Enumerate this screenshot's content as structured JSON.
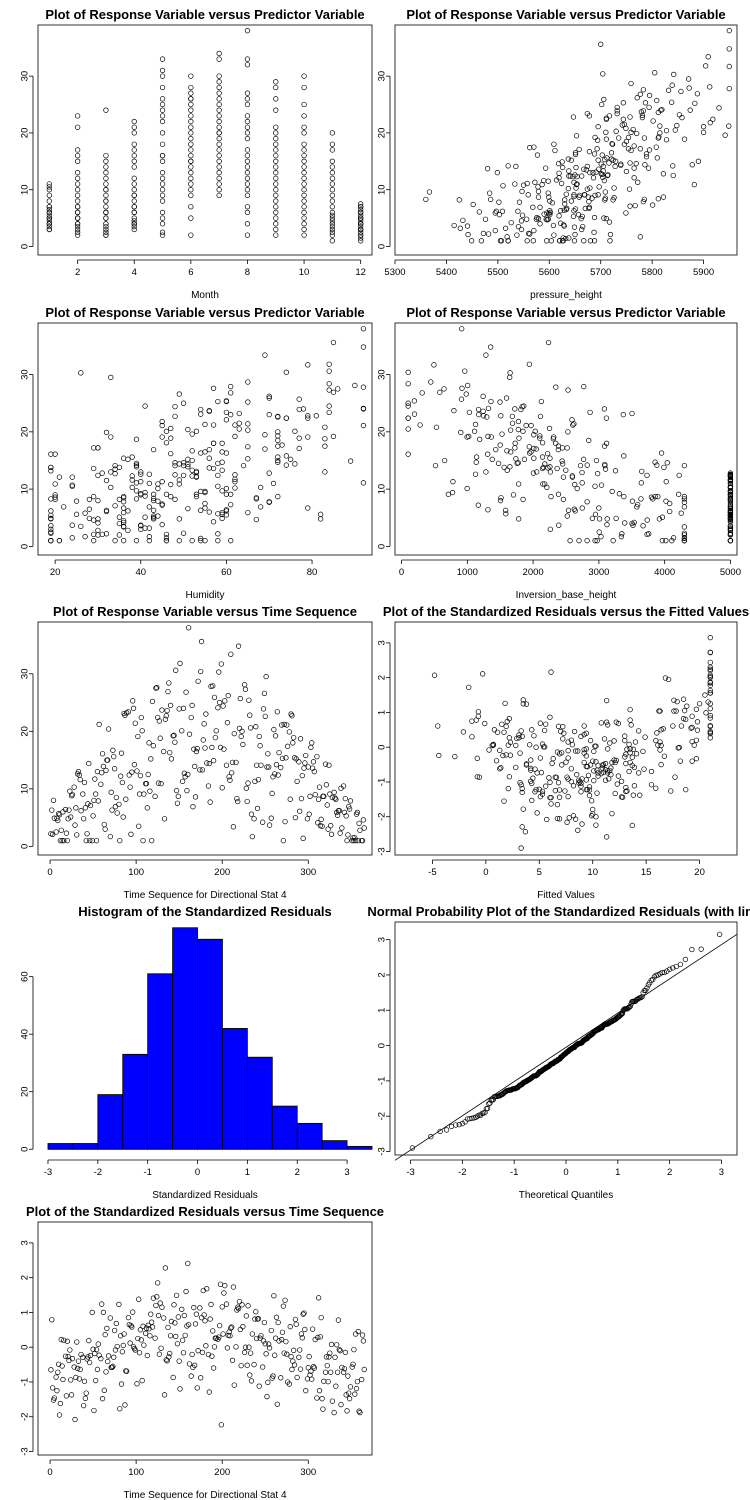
{
  "figure": {
    "background": "#ffffff",
    "point_color": "#000000",
    "hist_fill": "#0000ff"
  },
  "chart_data": [
    {
      "id": "month",
      "type": "scatter",
      "title": "Plot of Response Variable versus Predictor Variable",
      "xlabel": "Month",
      "ylabel": "",
      "xlim": [
        0.6,
        12.4
      ],
      "ylim": [
        -1.5,
        39
      ],
      "xticks": [
        2,
        4,
        6,
        8,
        10,
        12
      ],
      "yticks": [
        0,
        10,
        20,
        30
      ],
      "x": [
        1,
        1,
        1,
        1,
        1,
        1,
        1,
        1,
        1,
        1,
        1,
        1,
        1,
        1,
        1,
        1,
        1,
        1,
        1,
        1,
        2,
        2,
        2,
        2,
        2,
        2,
        2,
        2,
        2,
        2,
        2,
        2,
        2,
        2,
        2,
        2,
        2,
        2,
        2,
        2,
        2,
        2,
        2,
        2,
        3,
        3,
        3,
        3,
        3,
        3,
        3,
        3,
        3,
        3,
        3,
        3,
        3,
        3,
        3,
        3,
        3,
        3,
        3,
        3,
        3,
        3,
        3,
        3,
        4,
        4,
        4,
        4,
        4,
        4,
        4,
        4,
        4,
        4,
        4,
        4,
        4,
        4,
        4,
        4,
        4,
        4,
        4,
        4,
        4,
        4,
        4,
        4,
        5,
        5,
        5,
        5,
        5,
        5,
        5,
        5,
        5,
        5,
        5,
        5,
        5,
        5,
        5,
        5,
        5,
        5,
        5,
        5,
        5,
        5,
        5,
        5,
        5,
        6,
        6,
        6,
        6,
        6,
        6,
        6,
        6,
        6,
        6,
        6,
        6,
        6,
        6,
        6,
        6,
        6,
        6,
        6,
        6,
        6,
        6,
        6,
        6,
        6,
        6,
        7,
        7,
        7,
        7,
        7,
        7,
        7,
        7,
        7,
        7,
        7,
        7,
        7,
        7,
        7,
        7,
        7,
        7,
        7,
        7,
        7,
        7,
        7,
        7,
        7,
        8,
        8,
        8,
        8,
        8,
        8,
        8,
        8,
        8,
        8,
        8,
        8,
        8,
        8,
        8,
        8,
        8,
        8,
        8,
        8,
        8,
        8,
        8,
        8,
        9,
        9,
        9,
        9,
        9,
        9,
        9,
        9,
        9,
        9,
        9,
        9,
        9,
        9,
        9,
        9,
        9,
        9,
        9,
        9,
        9,
        9,
        9,
        9,
        10,
        10,
        10,
        10,
        10,
        10,
        10,
        10,
        10,
        10,
        10,
        10,
        10,
        10,
        10,
        10,
        10,
        10,
        10,
        10,
        10,
        10,
        10,
        11,
        11,
        11,
        11,
        11,
        11,
        11,
        11,
        11,
        11,
        11,
        11,
        11,
        11,
        11,
        11,
        11,
        11,
        11,
        11,
        11,
        11,
        12,
        12,
        12,
        12,
        12,
        12,
        12,
        12,
        12,
        12,
        12,
        12,
        12,
        12,
        12,
        12,
        12,
        12,
        12,
        12,
        12,
        12,
        12
      ],
      "y": [
        3,
        3.5,
        4,
        4,
        4.5,
        5,
        5,
        5,
        5.5,
        6,
        6,
        6.5,
        7,
        7,
        8,
        9,
        10,
        10.5,
        11,
        3,
        2,
        2.5,
        3,
        3.5,
        4,
        5,
        5,
        6,
        6,
        7,
        7,
        8,
        9,
        10,
        11,
        12,
        13,
        15,
        16,
        17,
        21,
        23,
        4,
        5,
        2,
        2.5,
        3,
        3.5,
        4,
        5,
        5,
        6,
        6,
        7,
        8,
        8,
        9,
        10,
        10,
        11,
        12,
        13,
        14,
        15,
        16,
        24,
        2,
        6,
        3,
        3.5,
        4,
        4.5,
        5,
        6,
        6,
        7,
        7,
        8,
        9,
        10,
        11,
        12,
        14,
        15,
        16,
        17,
        18,
        20,
        21,
        22,
        4,
        9,
        2,
        2.5,
        4,
        5,
        6,
        8,
        9,
        10,
        11,
        12,
        13,
        15,
        16,
        18,
        20,
        22,
        23,
        24,
        25,
        26,
        28,
        30,
        31,
        33,
        16,
        2,
        5,
        7,
        9,
        10,
        11,
        12,
        13,
        14,
        15,
        16,
        17,
        18,
        19,
        20,
        21,
        22,
        23,
        24,
        25,
        26,
        26,
        27,
        28,
        30,
        15,
        9,
        10,
        11,
        12,
        13,
        14,
        15,
        16,
        17,
        18,
        19,
        20,
        21,
        22,
        23,
        24,
        25,
        26,
        27,
        28,
        29,
        30,
        33,
        34,
        20,
        2,
        4,
        6,
        7,
        9,
        10,
        11,
        12,
        13,
        14,
        15,
        16,
        17,
        19,
        20,
        21,
        22,
        23,
        25,
        26,
        27,
        32,
        33,
        38,
        2,
        3,
        4,
        5,
        6,
        7,
        8,
        9,
        10,
        11,
        12,
        13,
        14,
        15,
        16,
        17,
        18,
        19,
        20,
        21,
        24,
        26,
        28,
        29,
        2,
        3,
        4,
        5,
        6,
        7,
        8,
        9,
        10,
        11,
        12,
        13,
        14,
        15,
        16,
        17,
        18,
        20,
        21,
        23,
        25,
        28,
        30,
        1,
        2,
        3,
        3.5,
        4,
        4.5,
        5,
        5.5,
        6,
        7,
        8,
        9,
        10,
        11,
        12,
        13,
        14,
        15,
        17,
        18,
        20,
        2.5,
        1,
        1.5,
        2,
        2.5,
        3,
        3,
        3.5,
        4,
        4,
        4.5,
        5,
        5,
        5.5,
        6,
        6,
        6.5,
        7,
        7,
        7.5,
        2,
        3,
        4,
        5
      ]
    },
    {
      "id": "pressure",
      "type": "scatter",
      "title": "Plot of Response Variable versus Predictor Variable",
      "xlabel": "pressure_height",
      "ylabel": "",
      "xlim": [
        5300,
        5965
      ],
      "ylim": [
        -1.5,
        39
      ],
      "xticks": [
        5300,
        5400,
        5500,
        5600,
        5700,
        5800,
        5900
      ],
      "yticks": [
        0,
        10,
        20,
        30
      ]
    },
    {
      "id": "humidity",
      "type": "scatter",
      "title": "Plot of Response Variable versus Predictor Variable",
      "xlabel": "Humidity",
      "ylabel": "",
      "xlim": [
        16,
        94
      ],
      "ylim": [
        -1.5,
        39
      ],
      "xticks": [
        20,
        40,
        60,
        80
      ],
      "yticks": [
        0,
        10,
        20,
        30
      ]
    },
    {
      "id": "inversion",
      "type": "scatter",
      "title": "Plot of Response Variable versus Predictor Variable",
      "xlabel": "Inversion_base_height",
      "ylabel": "",
      "xlim": [
        -100,
        5100
      ],
      "ylim": [
        -1.5,
        39
      ],
      "xticks": [
        0,
        1000,
        2000,
        3000,
        4000,
        5000
      ],
      "yticks": [
        0,
        10,
        20,
        30
      ]
    },
    {
      "id": "time-response",
      "type": "scatter",
      "title": "Plot of Response Variable versus Time Sequence",
      "xlabel": "Time Sequence for Directional Stat 4",
      "ylabel": "",
      "xlim": [
        -14,
        374
      ],
      "ylim": [
        -1.5,
        39
      ],
      "xticks": [
        0,
        100,
        200,
        300
      ],
      "yticks": [
        0,
        10,
        20,
        30
      ]
    },
    {
      "id": "resid-fitted",
      "type": "scatter",
      "title": "Plot of the Standardized Residuals versus the Fitted Values",
      "xlabel": "Fitted Values",
      "ylabel": "",
      "xlim": [
        -8.5,
        23.5
      ],
      "ylim": [
        -3.1,
        3.6
      ],
      "xticks": [
        -5,
        0,
        5,
        10,
        15,
        20
      ],
      "yticks": [
        -3,
        -2,
        -1,
        0,
        1,
        2,
        3
      ]
    },
    {
      "id": "histogram",
      "type": "bar",
      "title": "Histogram of the Standardized Residuals",
      "xlabel": "Standardized Residuals",
      "ylabel": "",
      "bin_edges": [
        -3,
        -2.5,
        -2,
        -1.5,
        -1,
        -0.5,
        0,
        0.5,
        1,
        1.5,
        2,
        2.5,
        3,
        3.5
      ],
      "values": [
        2,
        2,
        19,
        33,
        61,
        77,
        73,
        42,
        32,
        15,
        9,
        3,
        1
      ],
      "xlim": [
        -3.2,
        3.5
      ],
      "ylim": [
        -2,
        79
      ],
      "xticks": [
        -3,
        -2,
        -1,
        0,
        1,
        2,
        3
      ],
      "yticks": [
        0,
        20,
        40,
        60
      ],
      "color": "#0000ff"
    },
    {
      "id": "qq",
      "type": "scatter",
      "title": "Normal Probability Plot of the Standardized Residuals (with line)",
      "xlabel": "Theoretical Quantiles",
      "ylabel": "",
      "xlim": [
        -3.3,
        3.3
      ],
      "ylim": [
        -3.1,
        3.5
      ],
      "xticks": [
        -3,
        -2,
        -1,
        0,
        1,
        2,
        3
      ],
      "yticks": [
        -3,
        -2,
        -1,
        0,
        1,
        2,
        3
      ],
      "reference_line": {
        "slope": 0.97,
        "intercept": -0.05
      }
    },
    {
      "id": "resid-time",
      "type": "scatter",
      "title": "Plot of the Standardized Residuals versus Time Sequence",
      "xlabel": "Time Sequence for Directional Stat 4",
      "ylabel": "",
      "xlim": [
        -14,
        374
      ],
      "ylim": [
        -3.1,
        3.6
      ],
      "xticks": [
        0,
        100,
        200,
        300
      ],
      "yticks": [
        -3,
        -2,
        -1,
        0,
        1,
        2,
        3
      ]
    }
  ]
}
